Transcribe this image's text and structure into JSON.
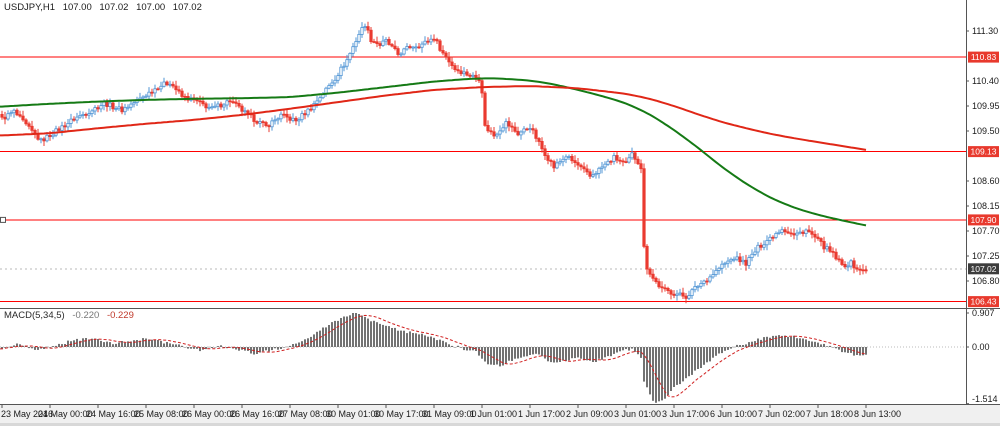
{
  "header": {
    "symbol_tf": "USDJPY,H1",
    "open": "107.00",
    "high": "107.02",
    "low": "107.00",
    "close": "107.02"
  },
  "macd_panel": {
    "name": "MACD(5,34,5)",
    "main_value": "-0.220",
    "signal_value": "-0.229"
  },
  "chart_data": {
    "type": "candlestick",
    "title": "USDJPY,H1",
    "symbol": "USDJPY",
    "timeframe": "H1",
    "bars_count": 289,
    "price_axis": {
      "visible_ticks": [
        111.3,
        110.4,
        109.95,
        109.5,
        108.6,
        108.15,
        107.7,
        107.25,
        106.8
      ],
      "ylim": [
        106.31,
        111.86
      ],
      "tick_step": 0.45
    },
    "current_price": 107.02,
    "levels": [
      110.83,
      109.13,
      107.9,
      106.43
    ],
    "selected_level": 107.9,
    "time_axis": {
      "bars_per_label": 16,
      "labels": [
        "23 May 2016",
        "24 May 00:00",
        "24 May 16:00",
        "25 May 08:00",
        "26 May 00:00",
        "26 May 16:00",
        "27 May 08:00",
        "30 May 01:00",
        "30 May 17:00",
        "31 May 09:00",
        "1 Jun 01:00",
        "1 Jun 17:00",
        "2 Jun 09:00",
        "3 Jun 01:00",
        "3 Jun 17:00",
        "6 Jun 10:00",
        "7 Jun 02:00",
        "7 Jun 18:00",
        "8 Jun 13:00"
      ]
    },
    "close_keyframes": [
      [
        0,
        109.72
      ],
      [
        4,
        109.85
      ],
      [
        8,
        109.6
      ],
      [
        13,
        109.32
      ],
      [
        18,
        109.5
      ],
      [
        24,
        109.72
      ],
      [
        30,
        109.88
      ],
      [
        34,
        110.0
      ],
      [
        40,
        109.88
      ],
      [
        46,
        110.08
      ],
      [
        52,
        110.3
      ],
      [
        56,
        110.38
      ],
      [
        60,
        110.12
      ],
      [
        64,
        110.05
      ],
      [
        70,
        109.9
      ],
      [
        76,
        110.05
      ],
      [
        82,
        109.78
      ],
      [
        88,
        109.58
      ],
      [
        93,
        109.78
      ],
      [
        98,
        109.68
      ],
      [
        103,
        109.92
      ],
      [
        107,
        110.18
      ],
      [
        111,
        110.45
      ],
      [
        115,
        110.78
      ],
      [
        119,
        111.25
      ],
      [
        121,
        111.42
      ],
      [
        123,
        111.15
      ],
      [
        126,
        111.05
      ],
      [
        128,
        111.12
      ],
      [
        132,
        110.88
      ],
      [
        136,
        111.02
      ],
      [
        140,
        111.06
      ],
      [
        144,
        111.18
      ],
      [
        147,
        110.9
      ],
      [
        151,
        110.62
      ],
      [
        156,
        110.5
      ],
      [
        159,
        110.45
      ],
      [
        160,
        110.22
      ],
      [
        161,
        109.58
      ],
      [
        164,
        109.42
      ],
      [
        168,
        109.65
      ],
      [
        172,
        109.45
      ],
      [
        176,
        109.58
      ],
      [
        180,
        109.18
      ],
      [
        184,
        108.85
      ],
      [
        188,
        109.05
      ],
      [
        192,
        108.88
      ],
      [
        196,
        108.68
      ],
      [
        200,
        108.85
      ],
      [
        204,
        109.02
      ],
      [
        208,
        108.9
      ],
      [
        210,
        109.08
      ],
      [
        212,
        108.95
      ],
      [
        213,
        108.85
      ],
      [
        214,
        107.4
      ],
      [
        215,
        107.05
      ],
      [
        217,
        106.85
      ],
      [
        220,
        106.65
      ],
      [
        224,
        106.58
      ],
      [
        228,
        106.52
      ],
      [
        232,
        106.72
      ],
      [
        236,
        106.88
      ],
      [
        240,
        107.08
      ],
      [
        244,
        107.22
      ],
      [
        248,
        107.12
      ],
      [
        252,
        107.4
      ],
      [
        256,
        107.58
      ],
      [
        260,
        107.75
      ],
      [
        264,
        107.62
      ],
      [
        268,
        107.72
      ],
      [
        271,
        107.58
      ],
      [
        274,
        107.42
      ],
      [
        277,
        107.28
      ],
      [
        280,
        107.08
      ],
      [
        283,
        107.12
      ],
      [
        286,
        106.98
      ],
      [
        288,
        107.02
      ]
    ],
    "ma_red_keyframes": [
      [
        0,
        109.42
      ],
      [
        16,
        109.46
      ],
      [
        32,
        109.55
      ],
      [
        48,
        109.63
      ],
      [
        64,
        109.7
      ],
      [
        80,
        109.79
      ],
      [
        96,
        109.9
      ],
      [
        112,
        110.02
      ],
      [
        128,
        110.14
      ],
      [
        144,
        110.24
      ],
      [
        160,
        110.29
      ],
      [
        176,
        110.31
      ],
      [
        192,
        110.27
      ],
      [
        208,
        110.17
      ],
      [
        216,
        110.08
      ],
      [
        224,
        109.95
      ],
      [
        232,
        109.8
      ],
      [
        240,
        109.66
      ],
      [
        248,
        109.55
      ],
      [
        256,
        109.45
      ],
      [
        264,
        109.37
      ],
      [
        272,
        109.3
      ],
      [
        280,
        109.23
      ],
      [
        288,
        109.16
      ]
    ],
    "ma_green_keyframes": [
      [
        0,
        109.94
      ],
      [
        16,
        109.99
      ],
      [
        32,
        110.03
      ],
      [
        48,
        110.06
      ],
      [
        64,
        110.08
      ],
      [
        80,
        110.09
      ],
      [
        96,
        110.11
      ],
      [
        112,
        110.19
      ],
      [
        128,
        110.29
      ],
      [
        144,
        110.39
      ],
      [
        156,
        110.44
      ],
      [
        164,
        110.45
      ],
      [
        176,
        110.41
      ],
      [
        184,
        110.34
      ],
      [
        192,
        110.24
      ],
      [
        200,
        110.13
      ],
      [
        208,
        110.0
      ],
      [
        216,
        109.8
      ],
      [
        224,
        109.52
      ],
      [
        232,
        109.2
      ],
      [
        240,
        108.85
      ],
      [
        248,
        108.55
      ],
      [
        256,
        108.3
      ],
      [
        264,
        108.12
      ],
      [
        272,
        107.99
      ],
      [
        280,
        107.89
      ],
      [
        288,
        107.8
      ]
    ],
    "macd": {
      "name": "MACD(5,34,5)",
      "axis_ticks": [
        "0.907",
        "0.00",
        "-1.514"
      ],
      "ylim": [
        -1.514,
        0.907
      ],
      "current_main": -0.22,
      "current_signal": -0.229,
      "keyframes": [
        [
          0,
          -0.05
        ],
        [
          6,
          0.08
        ],
        [
          12,
          -0.1
        ],
        [
          18,
          0.05
        ],
        [
          24,
          0.18
        ],
        [
          30,
          0.22
        ],
        [
          36,
          0.1
        ],
        [
          42,
          0.15
        ],
        [
          48,
          0.22
        ],
        [
          54,
          0.12
        ],
        [
          60,
          0.02
        ],
        [
          66,
          -0.08
        ],
        [
          72,
          0.03
        ],
        [
          78,
          -0.05
        ],
        [
          84,
          -0.18
        ],
        [
          90,
          -0.08
        ],
        [
          96,
          0.02
        ],
        [
          102,
          0.25
        ],
        [
          108,
          0.55
        ],
        [
          114,
          0.8
        ],
        [
          118,
          0.9
        ],
        [
          122,
          0.75
        ],
        [
          126,
          0.6
        ],
        [
          130,
          0.5
        ],
        [
          134,
          0.42
        ],
        [
          138,
          0.35
        ],
        [
          142,
          0.3
        ],
        [
          146,
          0.18
        ],
        [
          150,
          0.05
        ],
        [
          154,
          -0.05
        ],
        [
          158,
          -0.12
        ],
        [
          162,
          -0.45
        ],
        [
          166,
          -0.5
        ],
        [
          170,
          -0.35
        ],
        [
          174,
          -0.25
        ],
        [
          178,
          -0.18
        ],
        [
          182,
          -0.35
        ],
        [
          186,
          -0.42
        ],
        [
          190,
          -0.3
        ],
        [
          194,
          -0.32
        ],
        [
          198,
          -0.38
        ],
        [
          202,
          -0.25
        ],
        [
          206,
          -0.12
        ],
        [
          210,
          -0.05
        ],
        [
          213,
          -0.3
        ],
        [
          214,
          -0.9
        ],
        [
          216,
          -1.3
        ],
        [
          218,
          -1.51
        ],
        [
          220,
          -1.45
        ],
        [
          222,
          -1.3
        ],
        [
          224,
          -1.1
        ],
        [
          228,
          -0.85
        ],
        [
          232,
          -0.6
        ],
        [
          236,
          -0.35
        ],
        [
          240,
          -0.15
        ],
        [
          244,
          0.0
        ],
        [
          248,
          0.1
        ],
        [
          252,
          0.2
        ],
        [
          256,
          0.28
        ],
        [
          260,
          0.32
        ],
        [
          264,
          0.28
        ],
        [
          268,
          0.22
        ],
        [
          272,
          0.12
        ],
        [
          276,
          0.0
        ],
        [
          280,
          -0.12
        ],
        [
          284,
          -0.2
        ],
        [
          288,
          -0.22
        ]
      ]
    },
    "colors": {
      "background": "#ffffff",
      "bull": "#4f94d4",
      "bull_fill": "#ffffff",
      "bear": "#ea3b30",
      "ma_red": "#e02717",
      "ma_green": "#157a15",
      "level_line": "#ff0000",
      "level_box": "#e8392d",
      "current_box": "#3d3d3d",
      "histogram": "#636363",
      "signal": "#d02020",
      "axis_text": "#1a1a1a",
      "separator": "#555555",
      "bid_line": "#b8b8b8",
      "time_strip": "#f0f0f0",
      "scrollbar": "#d8d8d8"
    }
  }
}
